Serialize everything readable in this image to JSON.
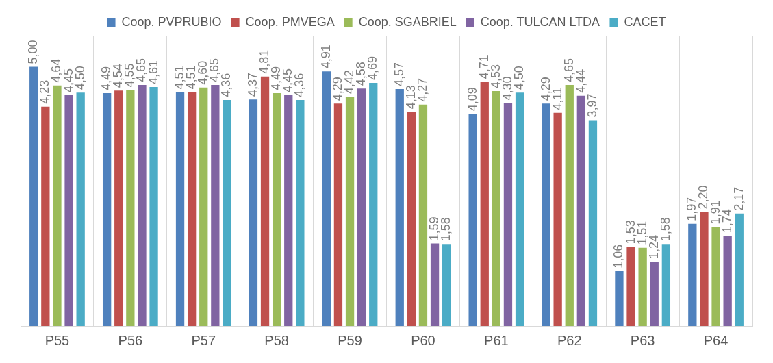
{
  "chart_data": {
    "type": "bar",
    "categories": [
      "P55",
      "P56",
      "P57",
      "P58",
      "P59",
      "P60",
      "P61",
      "P62",
      "P63",
      "P64"
    ],
    "ylim": [
      0,
      5.6
    ],
    "tick_labels": "x",
    "grid": "x",
    "legend": "top",
    "series": [
      {
        "name": "Coop. PVPRUBIO",
        "color": "#4f81bd",
        "values": [
          5.0,
          4.49,
          4.51,
          4.37,
          4.91,
          4.57,
          4.09,
          4.29,
          1.06,
          1.97
        ],
        "value_labels": [
          "5,00",
          "4,49",
          "4,51",
          "4,37",
          "4,91",
          "4,57",
          "4,09",
          "4,29",
          "1,06",
          "1,97"
        ]
      },
      {
        "name": "Coop. PMVEGA",
        "color": "#c0504d",
        "values": [
          4.23,
          4.54,
          4.51,
          4.81,
          4.29,
          4.13,
          4.71,
          4.11,
          1.53,
          2.2
        ],
        "value_labels": [
          "4,23",
          "4,54",
          "4,51",
          "4,81",
          "4,29",
          "4,13",
          "4,71",
          "4,11",
          "1,53",
          "2,20"
        ]
      },
      {
        "name": "Coop. SGABRIEL",
        "color": "#9bbb59",
        "values": [
          4.64,
          4.55,
          4.6,
          4.49,
          4.42,
          4.27,
          4.53,
          4.65,
          1.51,
          1.91
        ],
        "value_labels": [
          "4,64",
          "4,55",
          "4,60",
          "4,49",
          "4,42",
          "4,27",
          "4,53",
          "4,65",
          "1,51",
          "1,91"
        ]
      },
      {
        "name": "Coop. TULCAN LTDA",
        "color": "#8064a2",
        "values": [
          4.45,
          4.65,
          4.65,
          4.45,
          4.58,
          1.59,
          4.3,
          4.44,
          1.24,
          1.74
        ],
        "value_labels": [
          "4,45",
          "4,65",
          "4,65",
          "4,45",
          "4,58",
          "1,59",
          "4,30",
          "4,44",
          "1,24",
          "1,74"
        ]
      },
      {
        "name": "CACET",
        "color": "#4bacc6",
        "values": [
          4.5,
          4.61,
          4.36,
          4.36,
          4.69,
          1.58,
          4.5,
          3.97,
          1.58,
          2.17
        ],
        "value_labels": [
          "4,50",
          "4,61",
          "4,36",
          "4,36",
          "4,69",
          "1,58",
          "4,50",
          "3,97",
          "1,58",
          "2,17"
        ]
      }
    ]
  }
}
